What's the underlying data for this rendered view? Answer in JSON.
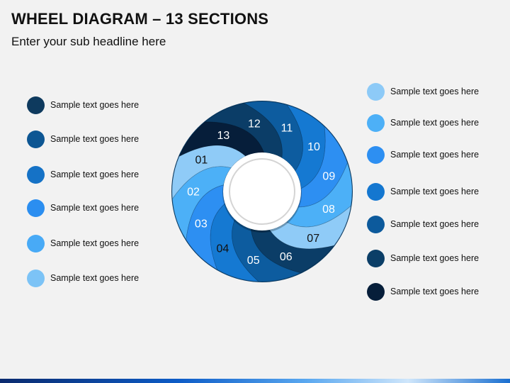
{
  "header": {
    "title": "WHEEL DIAGRAM – 13 SECTIONS",
    "subtitle": "Enter your sub headline here"
  },
  "left_list": [
    {
      "label": "Sample text goes here",
      "color": "#0e3a5e"
    },
    {
      "label": "Sample text goes here",
      "color": "#0d5693"
    },
    {
      "label": "Sample text goes here",
      "color": "#1572c6"
    },
    {
      "label": "Sample text goes here",
      "color": "#2b8ef0"
    },
    {
      "label": "Sample text goes here",
      "color": "#48aaf6"
    },
    {
      "label": "Sample text goes here",
      "color": "#7cc3f6"
    }
  ],
  "right_list": [
    {
      "label": "Sample text goes here",
      "color": "#8dcaf7"
    },
    {
      "label": "Sample text goes here",
      "color": "#4db0f7"
    },
    {
      "label": "Sample text goes here",
      "color": "#2d8ff2"
    },
    {
      "label": "Sample text goes here",
      "color": "#1477d0"
    },
    {
      "label": "Sample text goes here",
      "color": "#0c5a9c"
    },
    {
      "label": "Sample text goes here",
      "color": "#0b3e67"
    },
    {
      "label": "Sample text goes here",
      "color": "#061e3a"
    }
  ],
  "wheel": {
    "segments": [
      {
        "label": "01",
        "color": "#8fcbf7",
        "text_color": "#111111"
      },
      {
        "label": "02",
        "color": "#4cb0f7",
        "text_color": "#ffffff"
      },
      {
        "label": "03",
        "color": "#2d8ff2",
        "text_color": "#ffffff"
      },
      {
        "label": "04",
        "color": "#1579d2",
        "text_color": "#111111"
      },
      {
        "label": "05",
        "color": "#0d5c9f",
        "text_color": "#ffffff"
      },
      {
        "label": "06",
        "color": "#0b3d67",
        "text_color": "#ffffff"
      },
      {
        "label": "07",
        "color": "#8fcbf7",
        "text_color": "#111111"
      },
      {
        "label": "08",
        "color": "#4cb0f7",
        "text_color": "#ffffff"
      },
      {
        "label": "09",
        "color": "#2d8ff2",
        "text_color": "#ffffff"
      },
      {
        "label": "10",
        "color": "#1579d2",
        "text_color": "#ffffff"
      },
      {
        "label": "11",
        "color": "#0d5c9f",
        "text_color": "#ffffff"
      },
      {
        "label": "12",
        "color": "#0b3d67",
        "text_color": "#ffffff"
      },
      {
        "label": "13",
        "color": "#061e3a",
        "text_color": "#ffffff"
      }
    ]
  }
}
